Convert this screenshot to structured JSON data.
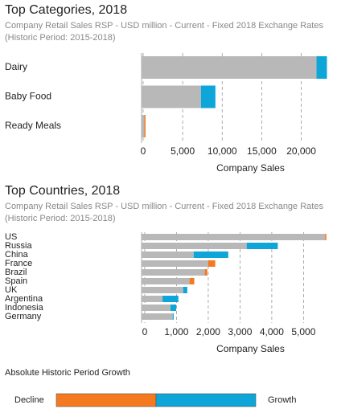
{
  "chart_data": [
    {
      "type": "stacked-hbar",
      "title": "Top Categories, 2018",
      "subtitle": "Company Retail Sales RSP - USD million - Current - Fixed 2018 Exchange Rates (Historic Period: 2015-2018)",
      "x_label": "Company Sales",
      "categories": [
        "Dairy",
        "Baby Food",
        "Ready Meals"
      ],
      "series": [
        {
          "color": "#b8b8b8",
          "values": [
            21930,
            7310,
            150
          ]
        },
        {
          "color": "#0ea5d8",
          "values": [
            1320,
            1830,
            null
          ]
        },
        {
          "color": "#f47920",
          "values": [
            null,
            null,
            150
          ]
        }
      ],
      "xlim": [
        -200,
        23300
      ],
      "xticks": [
        0,
        {
          "value": 5000,
          "label": "5,000"
        },
        {
          "value": 10000,
          "label": "10,000"
        },
        {
          "value": 15000,
          "label": "15,000"
        },
        {
          "value": 20000,
          "label": "20,000"
        }
      ],
      "grid": true
    },
    {
      "type": "stacked-hbar",
      "title": "Top Countries, 2018",
      "subtitle": "Company Retail Sales RSP - USD million - Current - Fixed 2018 Exchange Rates (Historic Period: 2015-2018)",
      "x_label": "Company Sales",
      "categories": [
        "US",
        "Russia",
        "China",
        "France",
        "Brazil",
        "Spain",
        "UK",
        "Argentina",
        "Indonesia",
        "Germany"
      ],
      "series": [
        {
          "color": "#b8b8b8",
          "values": [
            5680,
            3210,
            1540,
            2000,
            1890,
            1410,
            1210,
            560,
            810,
            880
          ]
        },
        {
          "color": "#0ea5d8",
          "values": [
            null,
            980,
            1090,
            null,
            null,
            null,
            130,
            500,
            180,
            30
          ]
        },
        {
          "color": "#f47920",
          "values": [
            40,
            null,
            null,
            220,
            80,
            150,
            null,
            null,
            null,
            null
          ]
        }
      ],
      "xlim": [
        -100,
        5750
      ],
      "xticks": [
        0,
        {
          "value": 1000,
          "label": "1,000"
        },
        {
          "value": 2000,
          "label": "2,000"
        },
        {
          "value": 3000,
          "label": "3,000"
        },
        {
          "value": 4000,
          "label": "4,000"
        },
        {
          "value": 5000,
          "label": "5,000"
        }
      ],
      "grid": true
    },
    {
      "type": "balance",
      "title": "Absolute Historic Period Growth",
      "categories": [
        "Decline",
        "Growth"
      ],
      "colors": [
        "#f47920",
        "#0ea5d8"
      ],
      "values": [
        50,
        50
      ]
    }
  ]
}
